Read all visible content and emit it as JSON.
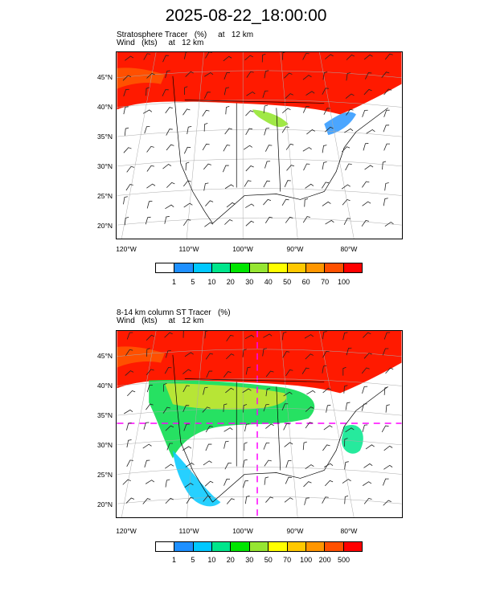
{
  "title": "2025-08-22_18:00:00",
  "panels": [
    {
      "id": "top",
      "subtitle_line1": "Stratosphere Tracer   (%)     at   12 km",
      "subtitle_line2": "Wind   (kts)     at   12 km",
      "lat_labels": [
        "45°N",
        "40°N",
        "35°N",
        "30°N",
        "25°N",
        "20°N"
      ],
      "lon_labels": [
        "120°W",
        "110°W",
        "100°W",
        "90°W",
        "80°W"
      ],
      "colorbar_labels": [
        "1",
        "5",
        "10",
        "20",
        "30",
        "40",
        "50",
        "60",
        "70",
        "100"
      ],
      "colorbar_colors": [
        "#ffffff",
        "#1e90ff",
        "#00c8ff",
        "#00e68c",
        "#00e600",
        "#96e632",
        "#ffff00",
        "#ffc800",
        "#ff9600",
        "#ff5000",
        "#ff0000"
      ],
      "has_dashed_overlay": false
    },
    {
      "id": "bottom",
      "subtitle_line1": "8-14 km column ST Tracer   (%)",
      "subtitle_line2": "Wind   (kts)     at   12 km",
      "lat_labels": [
        "45°N",
        "40°N",
        "35°N",
        "30°N",
        "25°N",
        "20°N"
      ],
      "lon_labels": [
        "120°W",
        "110°W",
        "100°W",
        "90°W",
        "80°W"
      ],
      "colorbar_labels": [
        "1",
        "5",
        "10",
        "20",
        "30",
        "50",
        "70",
        "100",
        "200",
        "500"
      ],
      "colorbar_colors": [
        "#ffffff",
        "#1e90ff",
        "#00c8ff",
        "#00e68c",
        "#00e600",
        "#96e632",
        "#ffff00",
        "#ffc800",
        "#ff9600",
        "#ff5000",
        "#ff0000"
      ],
      "has_dashed_overlay": true
    }
  ]
}
